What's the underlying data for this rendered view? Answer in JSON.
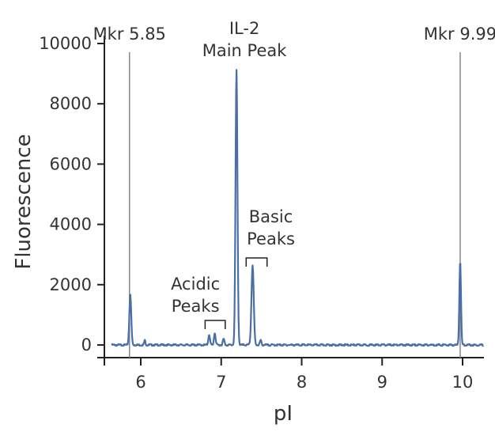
{
  "chart_data": {
    "type": "line",
    "title": "",
    "xlabel": "pI",
    "ylabel": "Fluorescence",
    "xlim": [
      5.6,
      10.3
    ],
    "ylim": [
      -500,
      10500
    ],
    "x_ticks": [
      6,
      7,
      8,
      9,
      10
    ],
    "y_ticks": [
      0,
      2000,
      4000,
      6000,
      8000,
      10000
    ],
    "grid": false,
    "series_color": "#4a6fa5",
    "marker_color": "#888888",
    "baseline": 0,
    "peaks": [
      {
        "x": 5.87,
        "y": 1650,
        "width": 0.012
      },
      {
        "x": 6.05,
        "y": 150,
        "width": 0.008
      },
      {
        "x": 6.85,
        "y": 350,
        "width": 0.01
      },
      {
        "x": 6.92,
        "y": 400,
        "width": 0.01
      },
      {
        "x": 7.03,
        "y": 200,
        "width": 0.01
      },
      {
        "x": 7.19,
        "y": 9100,
        "width": 0.012
      },
      {
        "x": 7.39,
        "y": 2650,
        "width": 0.014
      },
      {
        "x": 7.49,
        "y": 150,
        "width": 0.01
      },
      {
        "x": 9.97,
        "y": 2800,
        "width": 0.01
      }
    ],
    "markers": [
      {
        "x": 5.86,
        "label": "Mkr 5.85"
      },
      {
        "x": 9.97,
        "label": "Mkr 9.99"
      }
    ],
    "annotations": [
      {
        "lines": [
          "IL-2",
          "Main Peak"
        ],
        "x": 7.19
      },
      {
        "lines": [
          "Acidic",
          "Peaks"
        ],
        "bracket": [
          6.8,
          7.05
        ]
      },
      {
        "lines": [
          "Basic",
          "Peaks"
        ],
        "bracket": [
          7.31,
          7.57
        ]
      }
    ]
  }
}
